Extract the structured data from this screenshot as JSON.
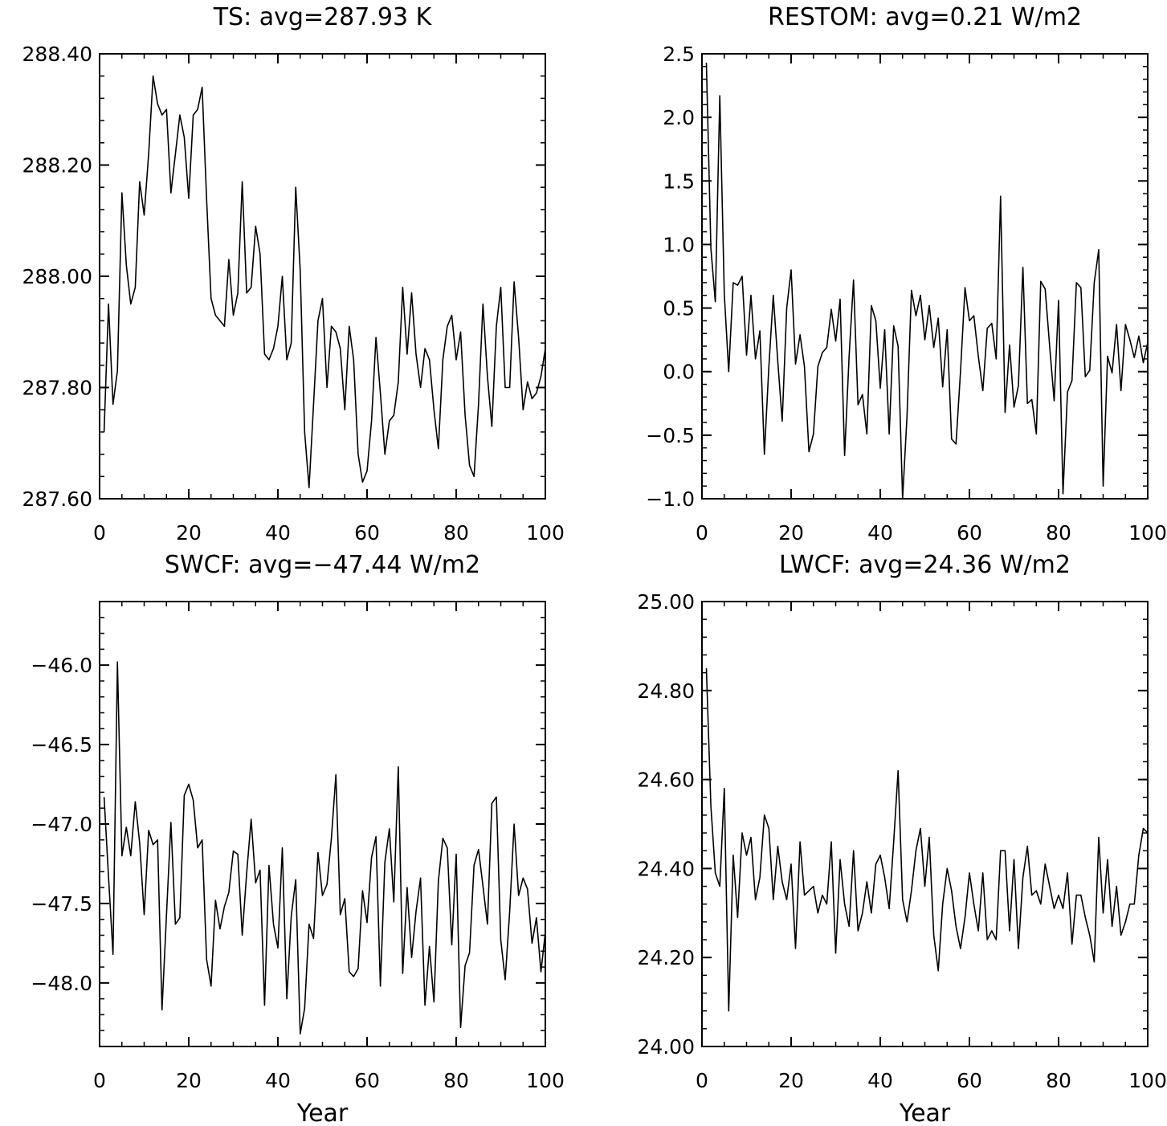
{
  "chart_data": [
    {
      "type": "line",
      "title": "TS: avg=287.93 K",
      "xlabel": "",
      "ylabel": "",
      "xlim": [
        0,
        100
      ],
      "ylim": [
        287.6,
        288.4
      ],
      "xticks": [
        0,
        20,
        40,
        60,
        80,
        100
      ],
      "xtick_labels": [
        "0",
        "20",
        "40",
        "60",
        "80",
        "100"
      ],
      "yticks": [
        287.6,
        287.8,
        288.0,
        288.2,
        288.4
      ],
      "ytick_labels": [
        "287.60",
        "287.80",
        "288.00",
        "288.20",
        "288.40"
      ],
      "x": [
        1,
        2,
        3,
        4,
        5,
        6,
        7,
        8,
        9,
        10,
        11,
        12,
        13,
        14,
        15,
        16,
        17,
        18,
        19,
        20,
        21,
        22,
        23,
        24,
        25,
        26,
        27,
        28,
        29,
        30,
        31,
        32,
        33,
        34,
        35,
        36,
        37,
        38,
        39,
        40,
        41,
        42,
        43,
        44,
        45,
        46,
        47,
        48,
        49,
        50,
        51,
        52,
        53,
        54,
        55,
        56,
        57,
        58,
        59,
        60,
        61,
        62,
        63,
        64,
        65,
        66,
        67,
        68,
        69,
        70,
        71,
        72,
        73,
        74,
        75,
        76,
        77,
        78,
        79,
        80,
        81,
        82,
        83,
        84,
        85,
        86,
        87,
        88,
        89,
        90,
        91,
        92,
        93,
        94,
        95,
        96,
        97,
        98,
        99,
        100
      ],
      "values": [
        287.72,
        287.95,
        287.77,
        287.83,
        288.15,
        288.02,
        287.95,
        287.98,
        288.17,
        288.11,
        288.22,
        288.36,
        288.31,
        288.29,
        288.3,
        288.15,
        288.22,
        288.29,
        288.25,
        288.14,
        288.29,
        288.3,
        288.34,
        288.14,
        287.96,
        287.93,
        287.92,
        287.91,
        288.03,
        287.93,
        287.97,
        288.17,
        287.97,
        287.98,
        288.09,
        288.04,
        287.86,
        287.85,
        287.87,
        287.91,
        288.0,
        287.85,
        287.88,
        288.16,
        288.01,
        287.72,
        287.62,
        287.77,
        287.92,
        287.96,
        287.8,
        287.91,
        287.9,
        287.87,
        287.76,
        287.91,
        287.85,
        287.68,
        287.63,
        287.65,
        287.74,
        287.89,
        287.79,
        287.68,
        287.74,
        287.75,
        287.81,
        287.98,
        287.86,
        287.97,
        287.86,
        287.8,
        287.87,
        287.85,
        287.76,
        287.69,
        287.85,
        287.91,
        287.93,
        287.85,
        287.9,
        287.75,
        287.66,
        287.64,
        287.77,
        287.95,
        287.82,
        287.73,
        287.91,
        287.98,
        287.8,
        287.8,
        287.99,
        287.89,
        287.76,
        287.81,
        287.78,
        287.79,
        287.82,
        287.87
      ]
    },
    {
      "type": "line",
      "title": "RESTOM: avg=0.21 W/m2",
      "xlabel": "",
      "ylabel": "",
      "xlim": [
        0,
        100
      ],
      "ylim": [
        -1.0,
        2.5
      ],
      "xticks": [
        0,
        20,
        40,
        60,
        80,
        100
      ],
      "xtick_labels": [
        "0",
        "20",
        "40",
        "60",
        "80",
        "100"
      ],
      "yticks": [
        -1.0,
        -0.5,
        0.0,
        0.5,
        1.0,
        1.5,
        2.0,
        2.5
      ],
      "ytick_labels": [
        "−1.0",
        "−0.5",
        "0.0",
        "0.5",
        "1.0",
        "1.5",
        "2.0",
        "2.5"
      ],
      "x": [
        1,
        2,
        3,
        4,
        5,
        6,
        7,
        8,
        9,
        10,
        11,
        12,
        13,
        14,
        15,
        16,
        17,
        18,
        19,
        20,
        21,
        22,
        23,
        24,
        25,
        26,
        27,
        28,
        29,
        30,
        31,
        32,
        33,
        34,
        35,
        36,
        37,
        38,
        39,
        40,
        41,
        42,
        43,
        44,
        45,
        46,
        47,
        48,
        49,
        50,
        51,
        52,
        53,
        54,
        55,
        56,
        57,
        58,
        59,
        60,
        61,
        62,
        63,
        64,
        65,
        66,
        67,
        68,
        69,
        70,
        71,
        72,
        73,
        74,
        75,
        76,
        77,
        78,
        79,
        80,
        81,
        82,
        83,
        84,
        85,
        86,
        87,
        88,
        89,
        90,
        91,
        92,
        93,
        94,
        95,
        96,
        97,
        98,
        99,
        100
      ],
      "values": [
        2.43,
        0.97,
        0.55,
        2.17,
        0.61,
        0.0,
        0.7,
        0.68,
        0.75,
        0.13,
        0.6,
        0.1,
        0.32,
        -0.65,
        0.04,
        0.6,
        0.08,
        -0.39,
        0.5,
        0.8,
        0.06,
        0.29,
        0.04,
        -0.63,
        -0.49,
        0.04,
        0.15,
        0.19,
        0.49,
        0.24,
        0.57,
        -0.66,
        0.12,
        0.72,
        -0.26,
        -0.18,
        -0.49,
        0.52,
        0.4,
        -0.13,
        0.33,
        -0.49,
        0.36,
        0.2,
        -1.0,
        -0.35,
        0.64,
        0.44,
        0.6,
        0.25,
        0.52,
        0.19,
        0.42,
        -0.12,
        0.33,
        -0.53,
        -0.57,
        0.0,
        0.66,
        0.4,
        0.44,
        0.12,
        -0.15,
        0.34,
        0.38,
        0.1,
        1.38,
        -0.32,
        0.21,
        -0.28,
        -0.11,
        0.82,
        -0.25,
        -0.22,
        -0.49,
        0.71,
        0.65,
        0.2,
        -0.23,
        0.56,
        -0.96,
        -0.16,
        -0.07,
        0.7,
        0.66,
        -0.04,
        0.01,
        0.7,
        0.96,
        -0.9,
        0.12,
        -0.01,
        0.37,
        -0.15,
        0.37,
        0.25,
        0.11,
        0.28,
        0.07,
        0.23
      ]
    },
    {
      "type": "line",
      "title": "SWCF: avg=−47.44 W/m2",
      "xlabel": "Year",
      "ylabel": "",
      "xlim": [
        0,
        100
      ],
      "ylim": [
        -48.4,
        -45.6
      ],
      "xticks": [
        0,
        20,
        40,
        60,
        80,
        100
      ],
      "xtick_labels": [
        "0",
        "20",
        "40",
        "60",
        "80",
        "100"
      ],
      "yticks": [
        -48.0,
        -47.5,
        -47.0,
        -46.5,
        -46.0
      ],
      "ytick_labels": [
        "−48.0",
        "−47.5",
        "−47.0",
        "−46.5",
        "−46.0"
      ],
      "x": [
        1,
        2,
        3,
        4,
        5,
        6,
        7,
        8,
        9,
        10,
        11,
        12,
        13,
        14,
        15,
        16,
        17,
        18,
        19,
        20,
        21,
        22,
        23,
        24,
        25,
        26,
        27,
        28,
        29,
        30,
        31,
        32,
        33,
        34,
        35,
        36,
        37,
        38,
        39,
        40,
        41,
        42,
        43,
        44,
        45,
        46,
        47,
        48,
        49,
        50,
        51,
        52,
        53,
        54,
        55,
        56,
        57,
        58,
        59,
        60,
        61,
        62,
        63,
        64,
        65,
        66,
        67,
        68,
        69,
        70,
        71,
        72,
        73,
        74,
        75,
        76,
        77,
        78,
        79,
        80,
        81,
        82,
        83,
        84,
        85,
        86,
        87,
        88,
        89,
        90,
        91,
        92,
        93,
        94,
        95,
        96,
        97,
        98,
        99,
        100
      ],
      "values": [
        -46.83,
        -47.33,
        -47.82,
        -45.98,
        -47.2,
        -47.02,
        -47.2,
        -46.86,
        -47.12,
        -47.57,
        -47.04,
        -47.13,
        -47.1,
        -48.17,
        -47.57,
        -46.99,
        -47.63,
        -47.59,
        -46.82,
        -46.75,
        -46.85,
        -47.15,
        -47.1,
        -47.85,
        -48.02,
        -47.48,
        -47.66,
        -47.52,
        -47.43,
        -47.17,
        -47.19,
        -47.7,
        -47.31,
        -46.97,
        -47.37,
        -47.29,
        -48.14,
        -47.26,
        -47.63,
        -47.78,
        -47.15,
        -48.1,
        -47.58,
        -47.35,
        -48.32,
        -48.16,
        -47.63,
        -47.72,
        -47.18,
        -47.45,
        -47.38,
        -47.09,
        -46.69,
        -47.57,
        -47.47,
        -47.93,
        -47.96,
        -47.91,
        -47.42,
        -47.62,
        -47.21,
        -47.08,
        -48.02,
        -47.24,
        -47.03,
        -47.49,
        -46.64,
        -47.94,
        -47.4,
        -47.84,
        -47.55,
        -47.34,
        -48.14,
        -47.77,
        -48.12,
        -47.36,
        -47.09,
        -47.15,
        -47.76,
        -47.19,
        -48.28,
        -47.89,
        -47.81,
        -47.26,
        -47.16,
        -47.39,
        -47.63,
        -46.87,
        -46.83,
        -47.73,
        -47.98,
        -47.55,
        -47.0,
        -47.45,
        -47.34,
        -47.41,
        -47.75,
        -47.59,
        -47.93,
        -47.68
      ]
    },
    {
      "type": "line",
      "title": "LWCF: avg=24.36 W/m2",
      "xlabel": "Year",
      "ylabel": "",
      "xlim": [
        0,
        100
      ],
      "ylim": [
        24.0,
        25.0
      ],
      "xticks": [
        0,
        20,
        40,
        60,
        80,
        100
      ],
      "xtick_labels": [
        "0",
        "20",
        "40",
        "60",
        "80",
        "100"
      ],
      "yticks": [
        24.0,
        24.2,
        24.4,
        24.6,
        24.8,
        25.0
      ],
      "ytick_labels": [
        "24.00",
        "24.20",
        "24.40",
        "24.60",
        "24.80",
        "25.00"
      ],
      "x": [
        1,
        2,
        3,
        4,
        5,
        6,
        7,
        8,
        9,
        10,
        11,
        12,
        13,
        14,
        15,
        16,
        17,
        18,
        19,
        20,
        21,
        22,
        23,
        24,
        25,
        26,
        27,
        28,
        29,
        30,
        31,
        32,
        33,
        34,
        35,
        36,
        37,
        38,
        39,
        40,
        41,
        42,
        43,
        44,
        45,
        46,
        47,
        48,
        49,
        50,
        51,
        52,
        53,
        54,
        55,
        56,
        57,
        58,
        59,
        60,
        61,
        62,
        63,
        64,
        65,
        66,
        67,
        68,
        69,
        70,
        71,
        72,
        73,
        74,
        75,
        76,
        77,
        78,
        79,
        80,
        81,
        82,
        83,
        84,
        85,
        86,
        87,
        88,
        89,
        90,
        91,
        92,
        93,
        94,
        95,
        96,
        97,
        98,
        99,
        100
      ],
      "values": [
        24.85,
        24.54,
        24.39,
        24.36,
        24.58,
        24.08,
        24.43,
        24.29,
        24.48,
        24.43,
        24.47,
        24.33,
        24.38,
        24.52,
        24.49,
        24.33,
        24.45,
        24.37,
        24.33,
        24.41,
        24.22,
        24.46,
        24.34,
        24.35,
        24.36,
        24.3,
        24.34,
        24.32,
        24.46,
        24.21,
        24.42,
        24.32,
        24.27,
        24.44,
        24.26,
        24.3,
        24.37,
        24.3,
        24.41,
        24.43,
        24.38,
        24.31,
        24.46,
        24.62,
        24.33,
        24.28,
        24.35,
        24.44,
        24.49,
        24.36,
        24.47,
        24.25,
        24.17,
        24.32,
        24.4,
        24.35,
        24.27,
        24.22,
        24.29,
        24.39,
        24.32,
        24.26,
        24.39,
        24.24,
        24.26,
        24.24,
        24.44,
        24.44,
        24.26,
        24.42,
        24.22,
        24.38,
        24.45,
        24.34,
        24.35,
        24.32,
        24.41,
        24.36,
        24.31,
        24.34,
        24.31,
        24.39,
        24.23,
        24.34,
        24.34,
        24.29,
        24.25,
        24.19,
        24.47,
        24.3,
        24.42,
        24.27,
        24.36,
        24.25,
        24.28,
        24.32,
        24.32,
        24.43,
        24.49,
        24.48
      ]
    }
  ]
}
